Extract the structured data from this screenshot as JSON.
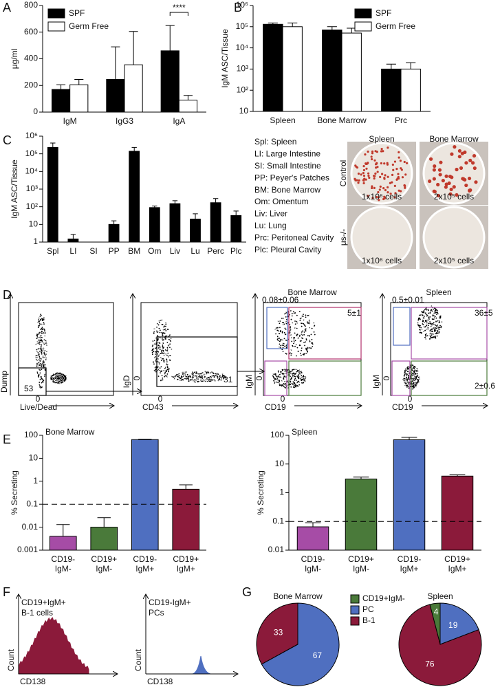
{
  "panel_labels": [
    "A",
    "B",
    "C",
    "D",
    "E",
    "F",
    "G"
  ],
  "chart_data": [
    {
      "type": "bar",
      "ylabel": "μg/ml",
      "categories": [
        "IgM",
        "IgG3",
        "IgA"
      ],
      "series": [
        {
          "name": "SPF",
          "color": "#000000",
          "values": [
            170,
            245,
            460
          ],
          "errors": [
            35,
            245,
            190
          ]
        },
        {
          "name": "Germ Free",
          "color": "#ffffff",
          "values": [
            205,
            355,
            90
          ],
          "errors": [
            40,
            250,
            35
          ]
        }
      ],
      "ylim": [
        0,
        800
      ],
      "yticks": [
        0,
        200,
        400,
        600,
        800
      ],
      "legend": "upper-left",
      "annotation": "****"
    },
    {
      "type": "bar",
      "ylabel": "IgM ASC/Tissue",
      "log_scale": true,
      "categories": [
        "Spleen",
        "Bone Marrow",
        "Prc"
      ],
      "series": [
        {
          "name": "SPF",
          "color": "#000000",
          "values": [
            130000,
            70000,
            1000
          ],
          "errors": [
            20000,
            30000,
            700
          ]
        },
        {
          "name": "Germ Free",
          "color": "#ffffff",
          "values": [
            100000,
            50000,
            1000
          ],
          "errors": [
            50000,
            35000,
            1000
          ]
        }
      ],
      "ylim": [
        10,
        1000000
      ],
      "yticks": [
        10,
        {
          "value": 100,
          "label": "10²"
        },
        {
          "value": 1000,
          "label": "10³"
        },
        {
          "value": 10000,
          "label": "10⁴"
        },
        {
          "value": 100000,
          "label": "10⁵"
        },
        {
          "value": 1000000,
          "label": "10⁶"
        }
      ],
      "legend": "upper-right"
    },
    {
      "type": "bar",
      "ylabel": "IgM ASC/Tissue",
      "log_scale": true,
      "categories": [
        "Spl",
        "LI",
        "SI",
        "PP",
        "BM",
        "Om",
        "Liv",
        "Lu",
        "Perc",
        "Plc"
      ],
      "values": [
        230000,
        1.5,
        null,
        10,
        140000,
        90,
        150,
        20,
        170,
        32
      ],
      "errors": [
        180000,
        1.2,
        null,
        6,
        90000,
        20,
        70,
        20,
        120,
        25
      ],
      "color": "#000000",
      "ylim": [
        1,
        1000000
      ],
      "yticks": [
        1,
        10,
        {
          "value": 100,
          "label": "10²"
        },
        {
          "value": 1000,
          "label": "10³"
        },
        {
          "value": 10000,
          "label": "10⁴"
        },
        {
          "value": 100000,
          "label": "10⁵"
        },
        {
          "value": 1000000,
          "label": "10⁶"
        }
      ]
    },
    {
      "type": "bar",
      "title": "Bone Marrow",
      "ylabel": "% Secreting",
      "log_scale": true,
      "categories": [
        [
          "CD19-",
          "IgM-"
        ],
        [
          "CD19+",
          "IgM-"
        ],
        [
          "CD19-",
          "IgM+"
        ],
        [
          "CD19+",
          "IgM+"
        ]
      ],
      "values": [
        0.004,
        0.01,
        65,
        0.45
      ],
      "errors": [
        0.009,
        0.016,
        3,
        0.25
      ],
      "colors": [
        "#a64ca6",
        "#4a7a3a",
        "#4f6fc0",
        "#8b1a3a"
      ],
      "threshold": 0.1,
      "ylim": [
        0.001,
        100
      ],
      "yticks": [
        0.001,
        0.01,
        0.1,
        1,
        10,
        100
      ]
    },
    {
      "type": "bar",
      "title": "Spleen",
      "ylabel": "% Secreting",
      "log_scale": true,
      "categories": [
        [
          "CD19-",
          "IgM-"
        ],
        [
          "CD19+",
          "IgM-"
        ],
        [
          "CD19-",
          "IgM+"
        ],
        [
          "CD19+",
          "IgM+"
        ]
      ],
      "values": [
        0.065,
        3,
        70,
        3.8
      ],
      "errors": [
        0.025,
        0.5,
        15,
        0.4
      ],
      "colors": [
        "#a64ca6",
        "#4a7a3a",
        "#4f6fc0",
        "#8b1a3a"
      ],
      "threshold": 0.1,
      "ylim": [
        0.01,
        100
      ],
      "yticks": [
        0.01,
        0.1,
        1,
        10,
        100
      ]
    },
    {
      "type": "pie",
      "categories": [
        "CD19+IgM-",
        "PC",
        "B-1"
      ],
      "colors": [
        "#4a7a3a",
        "#4f6fc0",
        "#8b1a3a"
      ],
      "series": [
        {
          "name": "Bone Marrow",
          "values": [
            null,
            67,
            33
          ]
        },
        {
          "name": "Spleen",
          "values": [
            4,
            19,
            76
          ]
        }
      ]
    }
  ],
  "abbreviations": [
    "Spl: Spleen",
    "LI: Large Intestine",
    "SI: Small Intestine",
    "PP: Peyer's Patches",
    "BM: Bone Marrow",
    "Om: Omentum",
    "Liv: Liver",
    "Lu: Lung",
    "Prc: Peritoneal Cavity",
    "Plc: Pleural Cavity"
  ],
  "plates": {
    "columns": [
      "Spleen",
      "Bone Marrow"
    ],
    "rows": [
      "Control",
      "μs-/-"
    ],
    "cells": [
      "1x10⁶ cells",
      "2x10⁵ cells",
      "1x10⁶ cells",
      "2x10⁵ cells"
    ]
  },
  "flow": [
    {
      "ylabel": "Dump",
      "xlabel": "Live/Dead",
      "xtick": "0",
      "gates": [
        "53"
      ]
    },
    {
      "ylabel": "IgD",
      "xlabel": "CD43",
      "xtick": "0",
      "ytick": "0",
      "gates": [
        "31"
      ]
    },
    {
      "title": "Bone Marrow",
      "ylabel": "IgM",
      "xlabel": "CD19",
      "xtick": "0",
      "ytick": "0",
      "gates": [
        "0.08±0.06",
        "5±1"
      ]
    },
    {
      "title": "Spleen",
      "ylabel": "IgM",
      "xlabel": "CD19",
      "xtick": "0",
      "ytick": "0",
      "gates": [
        "0.5±0.01",
        "36±5",
        "2±0.6"
      ]
    }
  ],
  "histograms": [
    {
      "lines": [
        "CD19+IgM+",
        "B-1 cells"
      ],
      "color": "#8b1a3a",
      "ylabel": "Count",
      "xlabel": "CD138"
    },
    {
      "lines": [
        "CD19-IgM+",
        "PCs"
      ],
      "color": "#4f6fc0",
      "ylabel": "Count",
      "xlabel": "CD138"
    }
  ]
}
